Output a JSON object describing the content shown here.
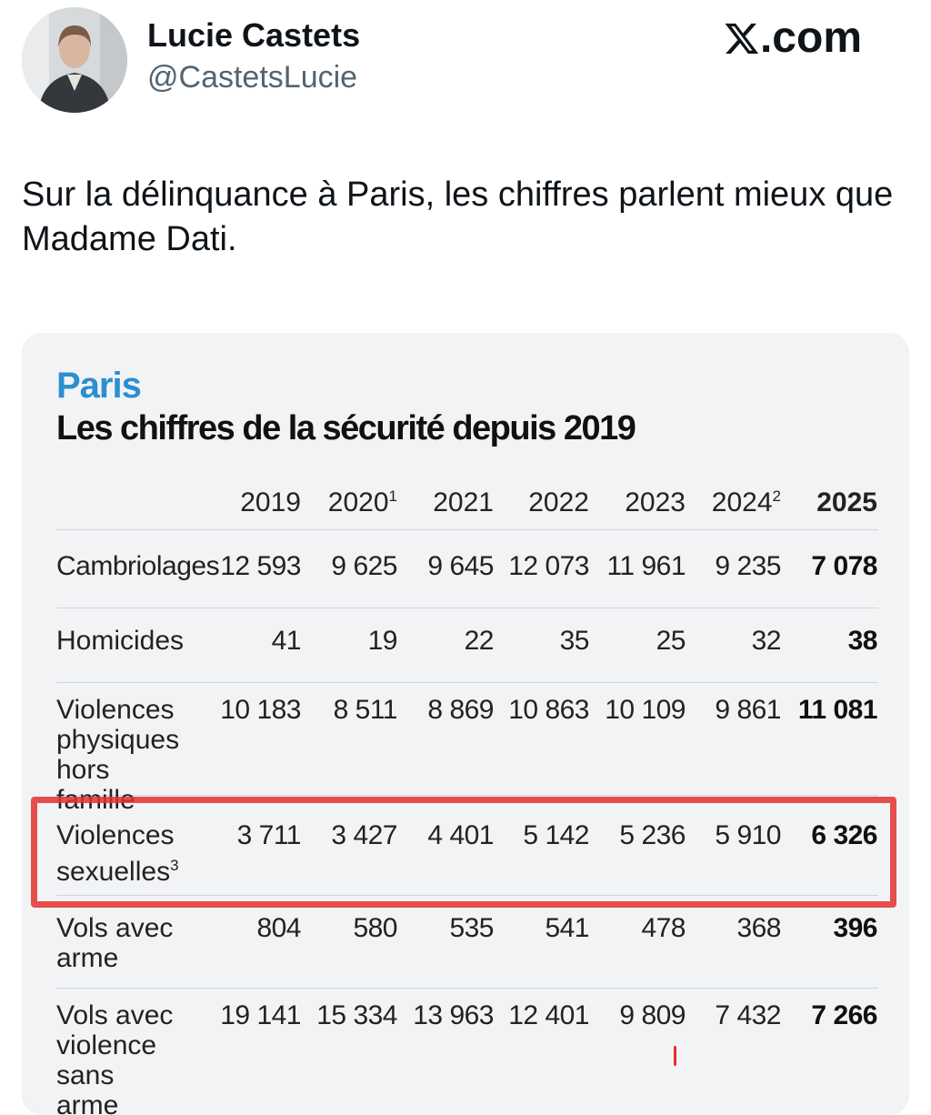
{
  "user": {
    "display_name": "Lucie Castets",
    "handle": "@CastetsLucie"
  },
  "site": {
    "letter": "𝕏",
    "suffix": ".com"
  },
  "tweet": {
    "text": "Sur la délinquance à Paris, les chiffres parlent mieux que Madame Dati."
  },
  "card": {
    "city": "Paris",
    "title": "Les chiffres de la sécurité depuis 2019",
    "years": [
      {
        "label": "2019",
        "note": ""
      },
      {
        "label": "2020",
        "note": "1"
      },
      {
        "label": "2021",
        "note": ""
      },
      {
        "label": "2022",
        "note": ""
      },
      {
        "label": "2023",
        "note": ""
      },
      {
        "label": "2024",
        "note": "2"
      },
      {
        "label": "2025",
        "note": ""
      }
    ],
    "rows": [
      {
        "label": "Cambriolages",
        "note": "",
        "values": [
          "12 593",
          "9 625",
          "9 645",
          "12 073",
          "11 961",
          "9 235",
          "7 078"
        ]
      },
      {
        "label": "Homicides",
        "note": "",
        "values": [
          "41",
          "19",
          "22",
          "35",
          "25",
          "32",
          "38"
        ]
      },
      {
        "label": "Violences physiques hors famille",
        "note": "",
        "values": [
          "10 183",
          "8 511",
          "8 869",
          "10 863",
          "10 109",
          "9 861",
          "11 081"
        ]
      },
      {
        "label": "Violences sexuelles",
        "note": "3",
        "values": [
          "3 711",
          "3 427",
          "4 401",
          "5 142",
          "5 236",
          "5 910",
          "6 326"
        ]
      },
      {
        "label": "Vols avec arme",
        "note": "",
        "values": [
          "804",
          "580",
          "535",
          "541",
          "478",
          "368",
          "396"
        ]
      },
      {
        "label": "Vols avec violence sans arme",
        "note": "",
        "values": [
          "19 141",
          "15 334",
          "13 963",
          "12 401",
          "9 809",
          "7 432",
          "7 266"
        ]
      }
    ]
  },
  "colors": {
    "accent_blue": "#2b8fd0",
    "highlight_red": "#e4302f",
    "card_bg": "#f2f3f5"
  }
}
